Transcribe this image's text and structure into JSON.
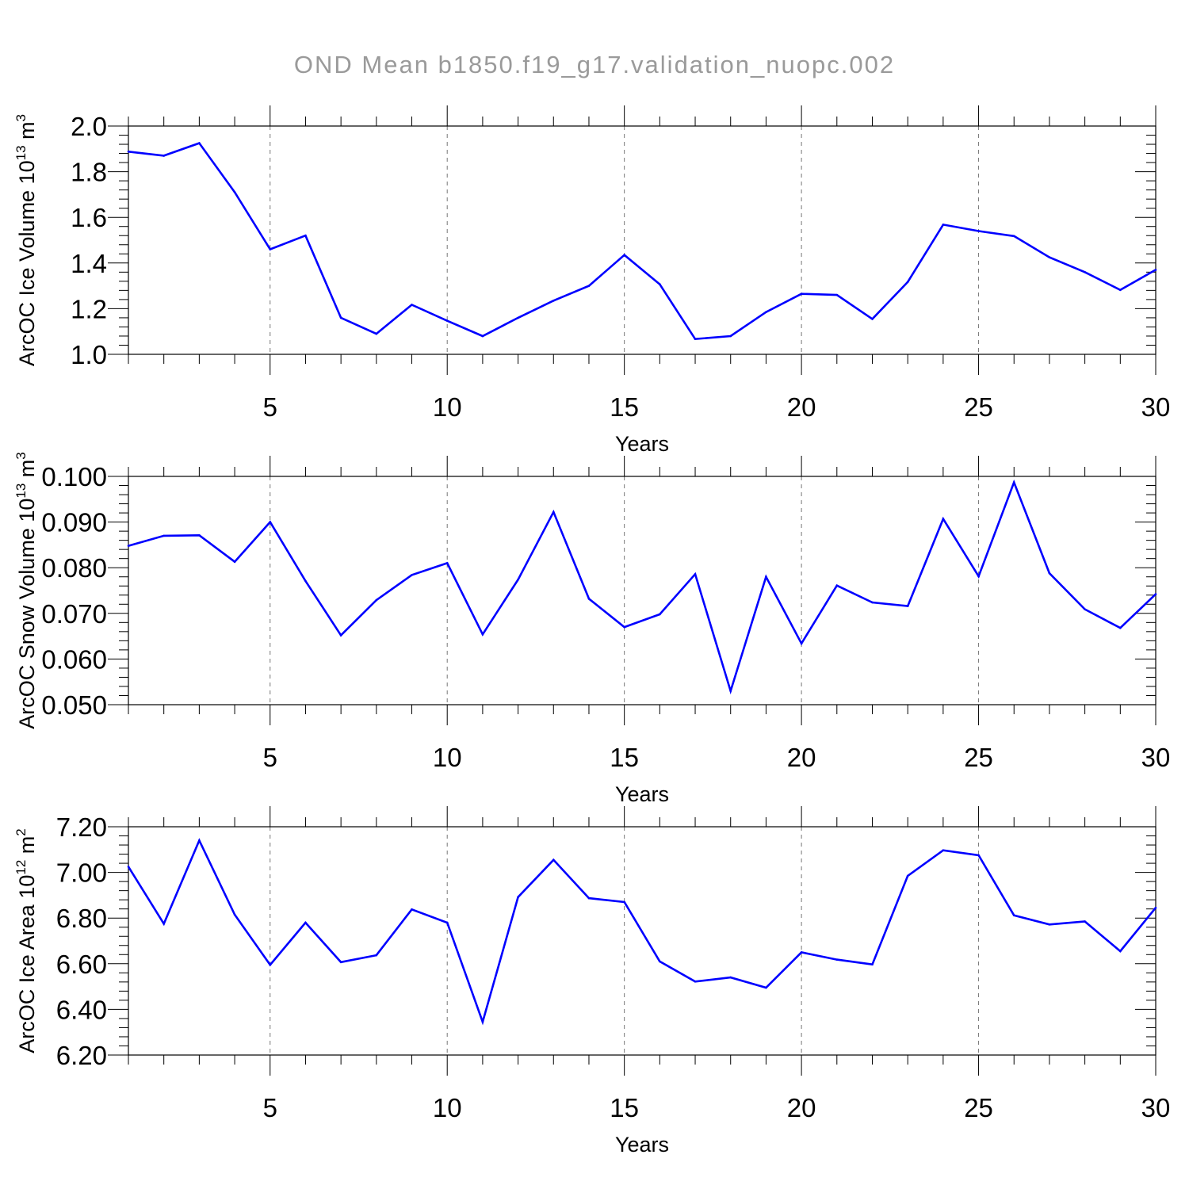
{
  "title": "OND Mean b1850.f19_g17.validation_nuopc.002",
  "colors": {
    "series": "#0000ff",
    "title": "#9a9a9a",
    "grid": "#777777"
  },
  "chart_data": [
    {
      "type": "line",
      "xlabel": "Years",
      "ylabel": {
        "text": "ArcOC Ice Volume 10",
        "exp": "13",
        "unit": " m",
        "unit_exp": "3"
      },
      "xlim": [
        1,
        30
      ],
      "ylim": [
        1.0,
        2.0
      ],
      "xticks": [
        5,
        10,
        15,
        20,
        25,
        30
      ],
      "yticks": [
        "1.0",
        "1.2",
        "1.4",
        "1.6",
        "1.8",
        "2.0"
      ],
      "ytick_values": [
        1.0,
        1.2,
        1.4,
        1.6,
        1.8,
        2.0
      ],
      "grid": "x-dashed",
      "x": [
        1,
        2,
        3,
        4,
        5,
        6,
        7,
        8,
        9,
        10,
        11,
        12,
        13,
        14,
        15,
        16,
        17,
        18,
        19,
        20,
        21,
        22,
        23,
        24,
        25,
        26,
        27,
        28,
        29,
        30
      ],
      "values": [
        1.888,
        1.87,
        1.925,
        1.71,
        1.46,
        1.52,
        1.16,
        1.09,
        1.217,
        1.147,
        1.08,
        1.16,
        1.235,
        1.3,
        1.435,
        1.307,
        1.067,
        1.08,
        1.185,
        1.265,
        1.26,
        1.155,
        1.317,
        1.568,
        1.54,
        1.518,
        1.425,
        1.36,
        1.282,
        1.37
      ]
    },
    {
      "type": "line",
      "xlabel": "Years",
      "ylabel": {
        "text": "ArcOC Snow Volume 10",
        "exp": "13",
        "unit": " m",
        "unit_exp": "3"
      },
      "xlim": [
        1,
        30
      ],
      "ylim": [
        0.05,
        0.1
      ],
      "xticks": [
        5,
        10,
        15,
        20,
        25,
        30
      ],
      "yticks": [
        "0.050",
        "0.060",
        "0.070",
        "0.080",
        "0.090",
        "0.100"
      ],
      "ytick_values": [
        0.05,
        0.06,
        0.07,
        0.08,
        0.09,
        0.1
      ],
      "grid": "x-dashed",
      "x": [
        1,
        2,
        3,
        4,
        5,
        6,
        7,
        8,
        9,
        10,
        11,
        12,
        13,
        14,
        15,
        16,
        17,
        18,
        19,
        20,
        21,
        22,
        23,
        24,
        25,
        26,
        27,
        28,
        29,
        30
      ],
      "values": [
        0.0848,
        0.087,
        0.0871,
        0.0813,
        0.09,
        0.0771,
        0.0652,
        0.0729,
        0.0784,
        0.081,
        0.0654,
        0.0774,
        0.0922,
        0.0732,
        0.067,
        0.0698,
        0.0786,
        0.053,
        0.078,
        0.0634,
        0.0761,
        0.0724,
        0.0716,
        0.0907,
        0.0781,
        0.0987,
        0.0788,
        0.0709,
        0.0668,
        0.0742
      ]
    },
    {
      "type": "line",
      "xlabel": "Years",
      "ylabel": {
        "text": "ArcOC Ice Area 10",
        "exp": "12",
        "unit": " m",
        "unit_exp": "2"
      },
      "xlim": [
        1,
        30
      ],
      "ylim": [
        6.2,
        7.2
      ],
      "xticks": [
        5,
        10,
        15,
        20,
        25,
        30
      ],
      "yticks": [
        "6.20",
        "6.40",
        "6.60",
        "6.80",
        "7.00",
        "7.20"
      ],
      "ytick_values": [
        6.2,
        6.4,
        6.6,
        6.8,
        7.0,
        7.2
      ],
      "grid": "x-dashed",
      "x": [
        1,
        2,
        3,
        4,
        5,
        6,
        7,
        8,
        9,
        10,
        11,
        12,
        13,
        14,
        15,
        16,
        17,
        18,
        19,
        20,
        21,
        22,
        23,
        24,
        25,
        26,
        27,
        28,
        29,
        30
      ],
      "values": [
        7.025,
        6.775,
        7.14,
        6.815,
        6.595,
        6.78,
        6.607,
        6.637,
        6.838,
        6.78,
        6.345,
        6.892,
        7.055,
        6.887,
        6.87,
        6.61,
        6.522,
        6.54,
        6.495,
        6.65,
        6.618,
        6.597,
        6.985,
        7.097,
        7.075,
        6.812,
        6.772,
        6.785,
        6.655,
        6.845
      ]
    }
  ]
}
